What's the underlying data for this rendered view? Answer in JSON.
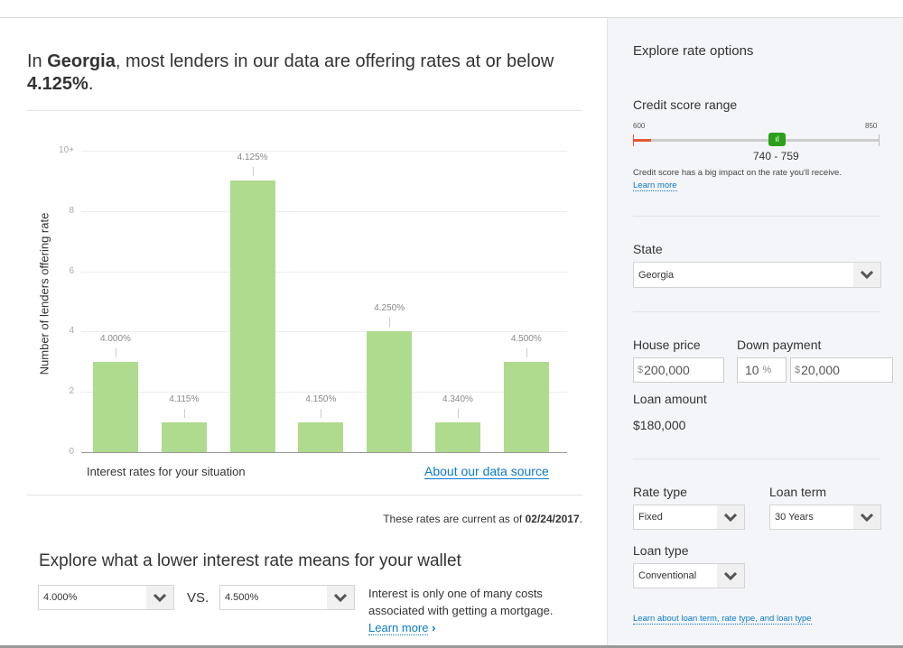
{
  "headline": {
    "prefix": "In ",
    "state": "Georgia",
    "middle": ", most lenders in our data are offering rates at or below ",
    "rate": "4.125%",
    "suffix": "."
  },
  "chart_data": {
    "type": "bar",
    "categories": [
      "4.000%",
      "4.115%",
      "4.125%",
      "4.150%",
      "4.250%",
      "4.340%",
      "4.500%"
    ],
    "values": [
      3,
      1,
      9,
      1,
      4,
      1,
      3
    ],
    "ylabel": "Number of lenders offering rate",
    "xlabel": "Interest rates for your situation",
    "yticks": [
      "0",
      "2",
      "4",
      "6",
      "8",
      "10+"
    ],
    "ylim": [
      0,
      10
    ],
    "grid": true
  },
  "chart_footer": {
    "link": "About our data source"
  },
  "current": {
    "text": "These rates are current as of ",
    "date": "02/24/2017",
    "end": "."
  },
  "wallet": {
    "title": "Explore what a lower interest rate means for your wallet",
    "rate_a": "4.000%",
    "vs": "VS.",
    "rate_b": "4.500%",
    "note": "Interest is only one of many costs associated with getting a mortgage.",
    "learn": "Learn more"
  },
  "panel": {
    "title": "Explore rate options",
    "credit": {
      "label": "Credit score range",
      "min": "600",
      "max": "850",
      "value": "740 - 759",
      "selected_fraction": 0.63,
      "note": "Credit score has a big impact on the rate you'll receive.",
      "learn": "Learn more"
    },
    "state": {
      "label": "State",
      "value": "Georgia"
    },
    "house": {
      "label": "House price",
      "currency": "$",
      "value": "200,000"
    },
    "down": {
      "label": "Down payment",
      "percent": "10",
      "pct_sign": "%",
      "currency": "$",
      "value": "20,000"
    },
    "loan_amount": {
      "label": "Loan amount",
      "value": "$180,000"
    },
    "rate_type": {
      "label": "Rate type",
      "value": "Fixed"
    },
    "loan_term": {
      "label": "Loan term",
      "value": "30 Years"
    },
    "loan_type": {
      "label": "Loan type",
      "value": "Conventional"
    },
    "learn_link": "Learn about loan term, rate type, and loan type"
  },
  "colors": {
    "bar": "#aedb8e",
    "accent": "#0a7acb",
    "slider": "#2ca01c",
    "low": "#e4572e"
  }
}
